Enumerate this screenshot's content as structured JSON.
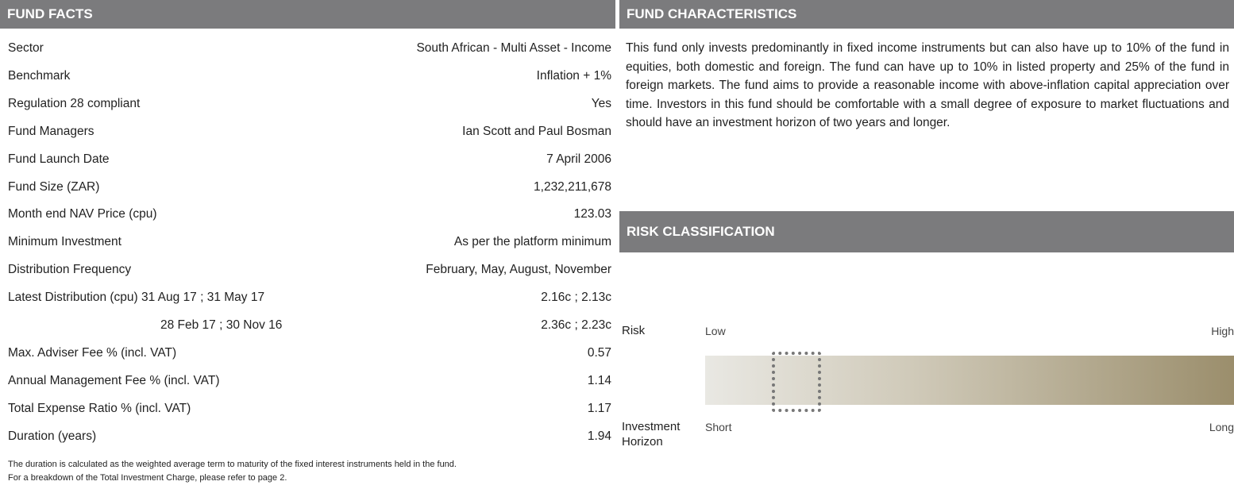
{
  "fund_facts": {
    "title": "FUND FACTS",
    "rows": [
      [
        "Sector",
        "South African - Multi Asset - Income"
      ],
      [
        "Benchmark",
        "Inflation + 1%"
      ],
      [
        "Regulation 28 compliant",
        "Yes"
      ],
      [
        "Fund Managers",
        "Ian Scott and Paul Bosman"
      ],
      [
        "Fund Launch Date",
        "7 April 2006"
      ],
      [
        "Fund Size (ZAR)",
        "1,232,211,678"
      ],
      [
        "Month end NAV Price (cpu)",
        "123.03"
      ],
      [
        "Minimum Investment",
        "As per the platform minimum"
      ],
      [
        "Distribution Frequency",
        "February, May, August, November"
      ],
      [
        "Latest Distribution (cpu) 31 Aug 17 ; 31 May 17",
        "2.16c ; 2.13c"
      ],
      [
        "28 Feb 17 ; 30 Nov 16",
        "2.36c ; 2.23c"
      ],
      [
        "Max. Adviser Fee % (incl. VAT)",
        "0.57"
      ],
      [
        "Annual Management Fee % (incl. VAT)",
        "1.14"
      ],
      [
        "Total Expense Ratio % (incl. VAT)",
        "1.17"
      ],
      [
        "Duration (years)",
        "1.94"
      ]
    ],
    "notes": [
      "The duration is calculated as the weighted average term to maturity of the fixed interest instruments held in the fund.",
      "For a breakdown of the Total Investment Charge, please refer to page 2."
    ]
  },
  "fund_characteristics": {
    "title": "FUND CHARACTERISTICS",
    "text": "This fund only invests predominantly in fixed income instruments but can also have up to 10% of the fund in equities, both domestic and foreign. The fund can have up to 10% in listed property and 25% of the fund in foreign markets. The fund aims to provide a reasonable income with above-inflation capital appreciation over time. Investors in this fund should be comfortable with a small degree of exposure to market fluctuations and should have an investment horizon of two years and longer."
  },
  "risk_classification": {
    "title": "RISK CLASSIFICATION",
    "risk_label": "Risk",
    "low": "Low",
    "high": "High",
    "horizon_label": [
      "Investment",
      "Horizon"
    ],
    "short": "Short",
    "long": "Long"
  }
}
